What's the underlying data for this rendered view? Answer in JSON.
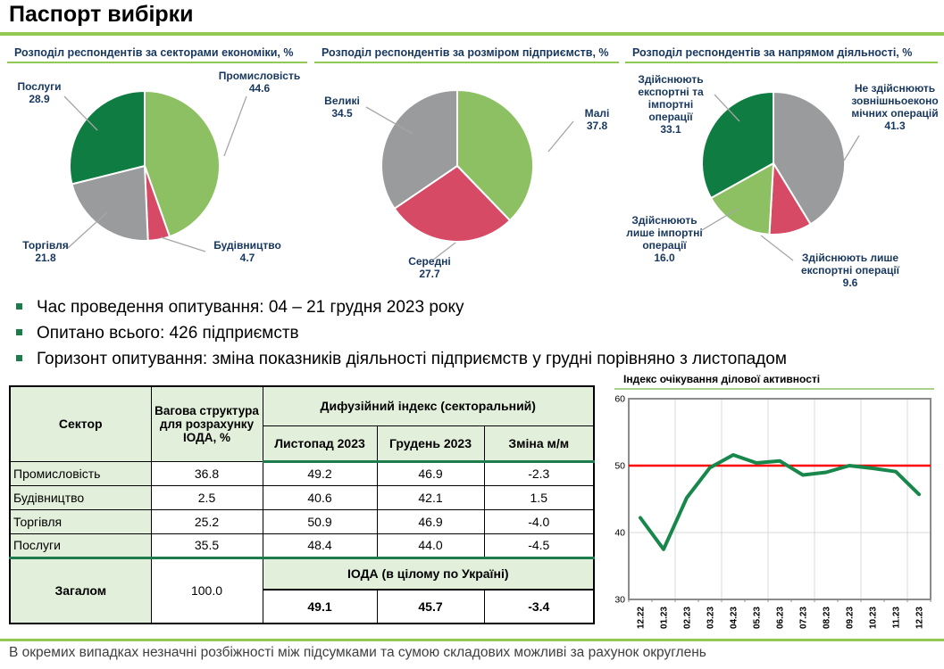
{
  "page": {
    "title": "Паспорт вибірки",
    "footer_note": "В окремих випадках незначні розбіжності між підсумками та сумою складових можливі за рахунок округлень"
  },
  "bullets": [
    "Час проведення опитування: 04 – 21 грудня 2023 року",
    "Опитано всього: 426 підприємств",
    "Горизонт опитування: зміна показників діяльності підприємств у грудні порівняно з листопадом"
  ],
  "colors": {
    "accent_underline": "#92C952",
    "dark_green": "#0F7C42",
    "light_green": "#8CC063",
    "gray": "#9A9B9D",
    "pink": "#D6germ4A66",
    "table_header_fill": "#E2EFDA",
    "thick_border_green": "#1E7B4C",
    "label_navy": "#17375E",
    "line_green": "#17874B",
    "reference_red": "#FF0000"
  },
  "chart_data": [
    {
      "type": "pie",
      "title": "Розподіл респондентів за секторами економіки, %",
      "slices": [
        {
          "label": "Промисловість",
          "value": 44.6,
          "value_label": "44.6",
          "color": "#8CC063"
        },
        {
          "label": "Будівництво",
          "value": 4.7,
          "value_label": "4.7",
          "color": "#D64A66"
        },
        {
          "label": "Торгівля",
          "value": 21.8,
          "value_label": "21.8",
          "color": "#9A9B9D"
        },
        {
          "label": "Послуги",
          "value": 28.9,
          "value_label": "28.9",
          "color": "#0F7C42"
        }
      ]
    },
    {
      "type": "pie",
      "title": "Розподіл респондентів за розміром підприємств, %",
      "slices": [
        {
          "label": "Малі",
          "value": 37.8,
          "value_label": "37.8",
          "color": "#8CC063"
        },
        {
          "label": "Середні",
          "value": 27.7,
          "value_label": "27.7",
          "color": "#D64A66"
        },
        {
          "label": "Великі",
          "value": 34.5,
          "value_label": "34.5",
          "color": "#9A9B9D"
        }
      ]
    },
    {
      "type": "pie",
      "title": "Розподіл респондентів за напрямом діяльності, %",
      "slices": [
        {
          "label": "Не здійснюють\nзовнішньоеконо\nмічних операцій",
          "value": 41.3,
          "value_label": "41.3",
          "color": "#9A9B9D"
        },
        {
          "label": "Здійснюють лише\nекспортні операції",
          "value": 9.6,
          "value_label": "9.6",
          "color": "#D64A66"
        },
        {
          "label": "Здійснюють\nлише імпортні\nоперації",
          "value": 16.0,
          "value_label": "16.0",
          "color": "#8CC063"
        },
        {
          "label": "Здійснюють\nекспортні та\nімпортні операції",
          "value": 33.1,
          "value_label": "33.1",
          "color": "#0F7C42"
        }
      ]
    },
    {
      "type": "line",
      "title": "Індекс очікування ділової активності",
      "categories": [
        "12.22",
        "01.23",
        "02.23",
        "03.23",
        "04.23",
        "05.23",
        "06.23",
        "07.23",
        "08.23",
        "09.23",
        "10.23",
        "11.23",
        "12.23"
      ],
      "values": [
        42.2,
        37.5,
        45.2,
        49.7,
        51.6,
        50.4,
        50.7,
        48.6,
        49.0,
        50.0,
        49.6,
        49.1,
        45.7
      ],
      "ylim": [
        30,
        60
      ],
      "yticks": [
        60,
        50,
        40,
        30
      ],
      "reference_line": 50,
      "grid": "on",
      "line_color": "#17874B",
      "reference_color": "#FF0000"
    }
  ],
  "table": {
    "col_sector": "Сектор",
    "col_weight": "Вагова структура для розрахунку ІОДА, %",
    "group_header": "Дифузійний індекс (секторальний)",
    "subheaders": [
      "Листопад 2023",
      "Грудень 2023",
      "Зміна м/м"
    ],
    "rows": [
      {
        "sector": "Промисловість",
        "weight": "36.8",
        "nov": "49.2",
        "dec": "46.9",
        "mm": "-2.3"
      },
      {
        "sector": "Будівництво",
        "weight": "2.5",
        "nov": "40.6",
        "dec": "42.1",
        "mm": "1.5"
      },
      {
        "sector": "Торгівля",
        "weight": "25.2",
        "nov": "50.9",
        "dec": "46.9",
        "mm": "-4.0"
      },
      {
        "sector": "Послуги",
        "weight": "35.5",
        "nov": "48.4",
        "dec": "44.0",
        "mm": "-4.5"
      }
    ],
    "total": {
      "label": "Загалом",
      "weight": "100.0",
      "iod_header": "ІОДА (в цілому по Україні)",
      "nov": "49.1",
      "dec": "45.7",
      "mm": "-3.4"
    }
  }
}
